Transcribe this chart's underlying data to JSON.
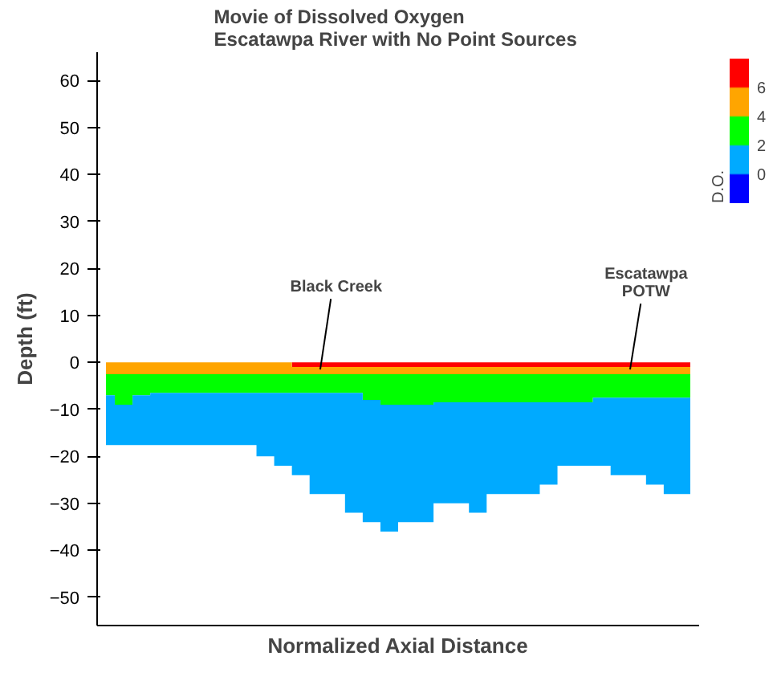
{
  "chart_data": {
    "type": "area",
    "stacked": true,
    "title": "Movie of  Dissolved Oxygen\nEscatawpa River with  No Point Sources",
    "xlabel": "Normalized Axial Distance",
    "ylabel": "Depth (ft)",
    "categories": [
      null,
      null,
      null,
      null,
      null,
      null,
      null,
      null,
      null,
      null,
      null,
      null,
      null,
      null,
      null,
      null,
      null,
      null,
      null,
      null,
      null,
      null,
      null,
      null,
      null,
      null,
      null,
      null,
      null,
      null,
      null,
      null,
      null,
      null
    ],
    "series": [
      {
        "color": "#ff0000",
        "values": [
          0,
          0,
          0,
          0,
          0,
          0,
          0,
          0,
          0,
          0,
          0,
          -1,
          -1,
          -1,
          -1,
          -1,
          -1,
          -1,
          -1,
          -1,
          -1,
          -1,
          -1,
          -1,
          -1,
          -1,
          -1,
          -1,
          -1,
          -1,
          -1,
          -1,
          -1,
          -1
        ]
      },
      {
        "color": "#ffa500",
        "values": [
          -2.5,
          -2.5,
          -2.5,
          -2.5,
          -2.5,
          -2.5,
          -2.5,
          -2.5,
          -2.5,
          -2.5,
          -2.5,
          -1.5,
          -1.5,
          -1.5,
          -1.5,
          -1.5,
          -1.5,
          -1.5,
          -1.5,
          -1.5,
          -1.5,
          -1.5,
          -1.5,
          -1.5,
          -1.5,
          -1.5,
          -1.5,
          -1.5,
          -1.5,
          -1.5,
          -1.5,
          -1.5,
          -1.5,
          -1.5
        ]
      },
      {
        "color": "#00ff00",
        "values": [
          -4.5,
          -6.5,
          -4.5,
          -4,
          -4,
          -4,
          -4,
          -4,
          -4,
          -4,
          -4,
          -4,
          -4,
          -4,
          -4,
          -5.5,
          -6.5,
          -6.5,
          -6.5,
          -6,
          -6,
          -6,
          -6,
          -6,
          -6,
          -6,
          -6,
          -6,
          -5,
          -5,
          -5,
          -5,
          -5,
          -5
        ]
      },
      {
        "color": "#00aaff",
        "values": [
          -10.6,
          -8.6,
          -10.6,
          -11.1,
          -11.1,
          -11.1,
          -11.1,
          -11.1,
          -11.1,
          -13.5,
          -15.5,
          -17.5,
          -21.5,
          -21.5,
          -25.5,
          -26,
          -27,
          -25,
          -25,
          -21.5,
          -21.5,
          -23.5,
          -19.5,
          -19.5,
          -19.5,
          -17.5,
          -13.5,
          -13.5,
          -14.5,
          -16.5,
          -16.5,
          -18.5,
          -20.5,
          -20.5
        ]
      }
    ],
    "ylim": [
      -56,
      66
    ],
    "yticks": [
      -50,
      -40,
      -30,
      -20,
      -10,
      0,
      10,
      20,
      30,
      40,
      50,
      60
    ],
    "grid": false,
    "clabel": "D.O.",
    "clim": [
      -2,
      8
    ],
    "cticks": [
      0,
      2,
      4,
      6
    ],
    "annotations": [
      "Black Creek",
      "Escatawpa\nPOTW"
    ]
  }
}
